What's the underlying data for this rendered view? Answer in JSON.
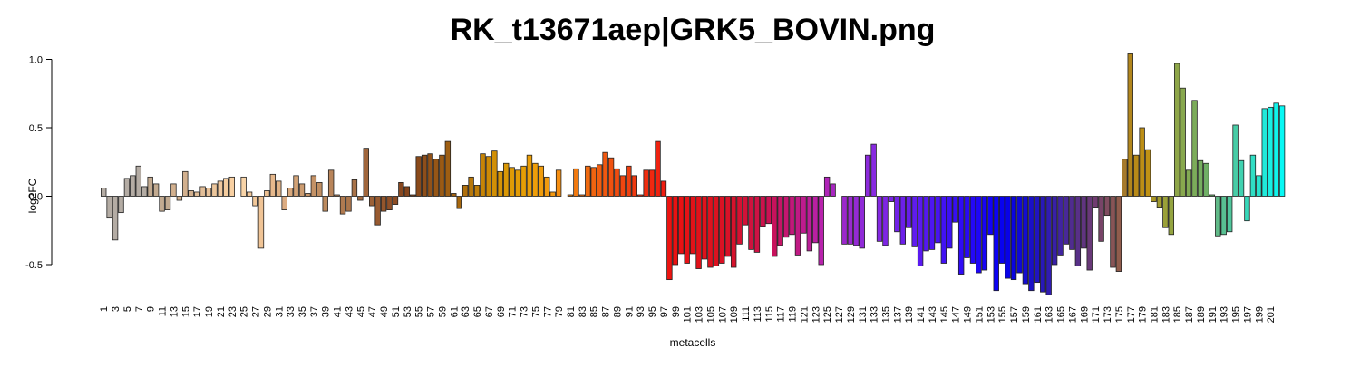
{
  "chart_data": {
    "type": "bar",
    "title": "RK_t13671aep|GRK5_BOVIN.png",
    "xlabel": "metacells",
    "ylabel": "log2FC",
    "ylim": [
      -0.72,
      1.04
    ],
    "yticks": [
      -0.5,
      0.0,
      0.5,
      1.0
    ],
    "ytick_labels": [
      "-0.5",
      "0.0",
      "0.5",
      "1.0"
    ],
    "xtick_labels": [
      "1",
      "3",
      "5",
      "7",
      "9",
      "11",
      "13",
      "15",
      "17",
      "19",
      "21",
      "23",
      "25",
      "27",
      "29",
      "31",
      "33",
      "35",
      "37",
      "39",
      "41",
      "43",
      "45",
      "47",
      "49",
      "51",
      "53",
      "55",
      "57",
      "59",
      "61",
      "63",
      "65",
      "67",
      "69",
      "71",
      "73",
      "75",
      "77",
      "79",
      "81",
      "83",
      "85",
      "87",
      "89",
      "91",
      "93",
      "95",
      "97",
      "99",
      "101",
      "103",
      "105",
      "107",
      "109",
      "111",
      "113",
      "115",
      "117",
      "119",
      "121",
      "123",
      "125",
      "127",
      "129",
      "131",
      "133",
      "135",
      "137",
      "139",
      "141",
      "143",
      "145",
      "147",
      "149",
      "151",
      "153",
      "155",
      "157",
      "159",
      "161",
      "163",
      "165",
      "167",
      "169",
      "171",
      "173",
      "175",
      "177",
      "179",
      "181",
      "183",
      "185",
      "187",
      "189",
      "191",
      "193",
      "195",
      "197",
      "199",
      "201"
    ],
    "xtick_values": [
      1,
      3,
      5,
      7,
      9,
      11,
      13,
      15,
      17,
      19,
      21,
      23,
      25,
      27,
      29,
      31,
      33,
      35,
      37,
      39,
      41,
      43,
      45,
      47,
      49,
      51,
      53,
      55,
      57,
      59,
      61,
      63,
      65,
      67,
      69,
      71,
      73,
      75,
      77,
      79,
      81,
      83,
      85,
      87,
      89,
      91,
      93,
      95,
      97,
      99,
      101,
      103,
      105,
      107,
      109,
      111,
      113,
      115,
      117,
      119,
      121,
      123,
      125,
      127,
      129,
      131,
      133,
      135,
      137,
      139,
      141,
      143,
      145,
      147,
      149,
      151,
      153,
      155,
      157,
      159,
      161,
      163,
      165,
      167,
      169,
      171,
      173,
      175,
      177,
      179,
      181,
      183,
      185,
      187,
      189,
      191,
      193,
      195,
      197,
      199,
      201
    ],
    "grid": false,
    "legend": "none",
    "bars": [
      {
        "x": 1,
        "value": 0.06,
        "color": "#b4aca4"
      },
      {
        "x": 2,
        "value": -0.16,
        "color": "#b4aca4"
      },
      {
        "x": 3,
        "value": -0.32,
        "color": "#b4aca4"
      },
      {
        "x": 4,
        "value": -0.12,
        "color": "#b4aca4"
      },
      {
        "x": 5,
        "value": 0.13,
        "color": "#b4aca4"
      },
      {
        "x": 6,
        "value": 0.15,
        "color": "#b4aca4"
      },
      {
        "x": 7,
        "value": 0.22,
        "color": "#b4aca4"
      },
      {
        "x": 8,
        "value": 0.07,
        "color": "#b4aca4"
      },
      {
        "x": 9,
        "value": 0.14,
        "color": "#c2aa90"
      },
      {
        "x": 10,
        "value": 0.09,
        "color": "#c2aa90"
      },
      {
        "x": 11,
        "value": -0.11,
        "color": "#c2aa90"
      },
      {
        "x": 12,
        "value": -0.1,
        "color": "#c2aa90"
      },
      {
        "x": 13,
        "value": 0.09,
        "color": "#d2b08e"
      },
      {
        "x": 14,
        "value": -0.03,
        "color": "#d2b08e"
      },
      {
        "x": 15,
        "value": 0.18,
        "color": "#d2b08e"
      },
      {
        "x": 16,
        "value": 0.04,
        "color": "#d2b08e"
      },
      {
        "x": 17,
        "value": 0.03,
        "color": "#e2be98"
      },
      {
        "x": 18,
        "value": 0.07,
        "color": "#e2be98"
      },
      {
        "x": 19,
        "value": 0.06,
        "color": "#e8c29a"
      },
      {
        "x": 20,
        "value": 0.09,
        "color": "#ecc69c"
      },
      {
        "x": 21,
        "value": 0.11,
        "color": "#f0c89e"
      },
      {
        "x": 22,
        "value": 0.13,
        "color": "#f4cc9e"
      },
      {
        "x": 23,
        "value": 0.14,
        "color": "#f8d0a2"
      },
      {
        "x": 24,
        "value": 0.0,
        "color": "#f8d0a2"
      },
      {
        "x": 25,
        "value": 0.14,
        "color": "#f8d4a8"
      },
      {
        "x": 26,
        "value": 0.03,
        "color": "#f2c89a"
      },
      {
        "x": 27,
        "value": -0.07,
        "color": "#f2c89a"
      },
      {
        "x": 28,
        "value": -0.38,
        "color": "#f0c496"
      },
      {
        "x": 29,
        "value": 0.04,
        "color": "#ecc092"
      },
      {
        "x": 30,
        "value": 0.16,
        "color": "#e6b88c"
      },
      {
        "x": 31,
        "value": 0.11,
        "color": "#e0b286"
      },
      {
        "x": 32,
        "value": -0.1,
        "color": "#dcac82"
      },
      {
        "x": 33,
        "value": 0.06,
        "color": "#d8a87c"
      },
      {
        "x": 34,
        "value": 0.15,
        "color": "#d2a276"
      },
      {
        "x": 35,
        "value": 0.09,
        "color": "#cc9c70"
      },
      {
        "x": 36,
        "value": 0.02,
        "color": "#c8966a"
      },
      {
        "x": 37,
        "value": 0.15,
        "color": "#c49266"
      },
      {
        "x": 38,
        "value": 0.1,
        "color": "#c08e62"
      },
      {
        "x": 39,
        "value": -0.11,
        "color": "#bc8a5e"
      },
      {
        "x": 40,
        "value": 0.19,
        "color": "#b8845a"
      },
      {
        "x": 41,
        "value": 0.01,
        "color": "#b48056"
      },
      {
        "x": 42,
        "value": -0.13,
        "color": "#b07a50"
      },
      {
        "x": 43,
        "value": -0.11,
        "color": "#ac764c"
      },
      {
        "x": 44,
        "value": 0.12,
        "color": "#a87248"
      },
      {
        "x": 45,
        "value": -0.03,
        "color": "#a46c42"
      },
      {
        "x": 46,
        "value": 0.35,
        "color": "#a0663c"
      },
      {
        "x": 47,
        "value": -0.07,
        "color": "#9c6036"
      },
      {
        "x": 48,
        "value": -0.21,
        "color": "#985a30"
      },
      {
        "x": 49,
        "value": -0.11,
        "color": "#94562c"
      },
      {
        "x": 50,
        "value": -0.1,
        "color": "#905028"
      },
      {
        "x": 51,
        "value": -0.06,
        "color": "#8c4c24"
      },
      {
        "x": 52,
        "value": 0.1,
        "color": "#884820"
      },
      {
        "x": 53,
        "value": 0.07,
        "color": "#84441c"
      },
      {
        "x": 54,
        "value": 0.01,
        "color": "#82461e"
      },
      {
        "x": 55,
        "value": 0.29,
        "color": "#8a4a1a"
      },
      {
        "x": 56,
        "value": 0.3,
        "color": "#8e4e1a"
      },
      {
        "x": 57,
        "value": 0.31,
        "color": "#925218"
      },
      {
        "x": 58,
        "value": 0.27,
        "color": "#965616"
      },
      {
        "x": 59,
        "value": 0.3,
        "color": "#9a5a14"
      },
      {
        "x": 60,
        "value": 0.4,
        "color": "#9e5e12"
      },
      {
        "x": 61,
        "value": 0.02,
        "color": "#a26210"
      },
      {
        "x": 62,
        "value": -0.09,
        "color": "#a8680e"
      },
      {
        "x": 63,
        "value": 0.08,
        "color": "#b0700c"
      },
      {
        "x": 64,
        "value": 0.14,
        "color": "#b8780a"
      },
      {
        "x": 65,
        "value": 0.08,
        "color": "#c07e08"
      },
      {
        "x": 66,
        "value": 0.31,
        "color": "#c68406"
      },
      {
        "x": 67,
        "value": 0.29,
        "color": "#cc8a06"
      },
      {
        "x": 68,
        "value": 0.33,
        "color": "#d29006"
      },
      {
        "x": 69,
        "value": 0.18,
        "color": "#d69406"
      },
      {
        "x": 70,
        "value": 0.24,
        "color": "#da9806"
      },
      {
        "x": 71,
        "value": 0.21,
        "color": "#de9a06"
      },
      {
        "x": 72,
        "value": 0.19,
        "color": "#e29c06"
      },
      {
        "x": 73,
        "value": 0.22,
        "color": "#e69e06"
      },
      {
        "x": 74,
        "value": 0.3,
        "color": "#ea9e08"
      },
      {
        "x": 75,
        "value": 0.24,
        "color": "#ee9e0a"
      },
      {
        "x": 76,
        "value": 0.22,
        "color": "#f09c0c"
      },
      {
        "x": 77,
        "value": 0.14,
        "color": "#f29a0e"
      },
      {
        "x": 78,
        "value": 0.03,
        "color": "#f49810"
      },
      {
        "x": 79,
        "value": 0.19,
        "color": "#f68e10"
      },
      {
        "x": 80,
        "value": 0.0,
        "color": "#f68e10"
      },
      {
        "x": 81,
        "value": 0.01,
        "color": "#f48410"
      },
      {
        "x": 82,
        "value": 0.2,
        "color": "#f27a10"
      },
      {
        "x": 83,
        "value": 0.01,
        "color": "#f07010"
      },
      {
        "x": 84,
        "value": 0.22,
        "color": "#f06a10"
      },
      {
        "x": 85,
        "value": 0.21,
        "color": "#f06410"
      },
      {
        "x": 86,
        "value": 0.23,
        "color": "#f05e10"
      },
      {
        "x": 87,
        "value": 0.32,
        "color": "#f05810"
      },
      {
        "x": 88,
        "value": 0.28,
        "color": "#f05210"
      },
      {
        "x": 89,
        "value": 0.2,
        "color": "#f04c10"
      },
      {
        "x": 90,
        "value": 0.15,
        "color": "#f04610"
      },
      {
        "x": 91,
        "value": 0.22,
        "color": "#f04010"
      },
      {
        "x": 92,
        "value": 0.15,
        "color": "#f03a10"
      },
      {
        "x": 93,
        "value": 0.01,
        "color": "#f03410"
      },
      {
        "x": 94,
        "value": 0.19,
        "color": "#f02e10"
      },
      {
        "x": 95,
        "value": 0.19,
        "color": "#f02810"
      },
      {
        "x": 96,
        "value": 0.4,
        "color": "#f02210"
      },
      {
        "x": 97,
        "value": 0.11,
        "color": "#f01c10"
      },
      {
        "x": 98,
        "value": -0.61,
        "color": "#ec1410"
      },
      {
        "x": 99,
        "value": -0.5,
        "color": "#ea1212"
      },
      {
        "x": 100,
        "value": -0.42,
        "color": "#e81214"
      },
      {
        "x": 101,
        "value": -0.49,
        "color": "#e61216"
      },
      {
        "x": 102,
        "value": -0.42,
        "color": "#e41218"
      },
      {
        "x": 103,
        "value": -0.53,
        "color": "#e2121a"
      },
      {
        "x": 104,
        "value": -0.46,
        "color": "#e0121c"
      },
      {
        "x": 105,
        "value": -0.52,
        "color": "#de121e"
      },
      {
        "x": 106,
        "value": -0.51,
        "color": "#dc1220"
      },
      {
        "x": 107,
        "value": -0.49,
        "color": "#da1224"
      },
      {
        "x": 108,
        "value": -0.44,
        "color": "#d81228"
      },
      {
        "x": 109,
        "value": -0.52,
        "color": "#d6122c"
      },
      {
        "x": 110,
        "value": -0.35,
        "color": "#d41232"
      },
      {
        "x": 111,
        "value": -0.21,
        "color": "#d21238"
      },
      {
        "x": 112,
        "value": -0.39,
        "color": "#d0123e"
      },
      {
        "x": 113,
        "value": -0.41,
        "color": "#ce1244"
      },
      {
        "x": 114,
        "value": -0.22,
        "color": "#cc124c"
      },
      {
        "x": 115,
        "value": -0.2,
        "color": "#ca1254"
      },
      {
        "x": 116,
        "value": -0.44,
        "color": "#c8125c"
      },
      {
        "x": 117,
        "value": -0.36,
        "color": "#c61466"
      },
      {
        "x": 118,
        "value": -0.3,
        "color": "#c41670"
      },
      {
        "x": 119,
        "value": -0.28,
        "color": "#c2187a"
      },
      {
        "x": 120,
        "value": -0.43,
        "color": "#c01a84"
      },
      {
        "x": 121,
        "value": -0.27,
        "color": "#be1c8e"
      },
      {
        "x": 122,
        "value": -0.4,
        "color": "#bc1e98"
      },
      {
        "x": 123,
        "value": -0.34,
        "color": "#ba20a2"
      },
      {
        "x": 124,
        "value": -0.5,
        "color": "#b822ac"
      },
      {
        "x": 125,
        "value": 0.14,
        "color": "#b024b8"
      },
      {
        "x": 126,
        "value": 0.09,
        "color": "#a826c0"
      },
      {
        "x": 127,
        "value": 0.0,
        "color": "#a026c6"
      },
      {
        "x": 128,
        "value": -0.35,
        "color": "#9c28cc"
      },
      {
        "x": 129,
        "value": -0.35,
        "color": "#982ad0"
      },
      {
        "x": 130,
        "value": -0.36,
        "color": "#942ad4"
      },
      {
        "x": 131,
        "value": -0.38,
        "color": "#902ad8"
      },
      {
        "x": 132,
        "value": 0.3,
        "color": "#8c2adc"
      },
      {
        "x": 133,
        "value": 0.38,
        "color": "#882ae0"
      },
      {
        "x": 134,
        "value": -0.33,
        "color": "#8428e2"
      },
      {
        "x": 135,
        "value": -0.36,
        "color": "#7e26e4"
      },
      {
        "x": 136,
        "value": -0.04,
        "color": "#7824e6"
      },
      {
        "x": 137,
        "value": -0.26,
        "color": "#7222e8"
      },
      {
        "x": 138,
        "value": -0.35,
        "color": "#6c20ea"
      },
      {
        "x": 139,
        "value": -0.23,
        "color": "#661eec"
      },
      {
        "x": 140,
        "value": -0.37,
        "color": "#601cee"
      },
      {
        "x": 141,
        "value": -0.51,
        "color": "#5a1af0"
      },
      {
        "x": 142,
        "value": -0.4,
        "color": "#5418f0"
      },
      {
        "x": 143,
        "value": -0.39,
        "color": "#4e16f2"
      },
      {
        "x": 144,
        "value": -0.34,
        "color": "#4814f2"
      },
      {
        "x": 145,
        "value": -0.49,
        "color": "#4212f4"
      },
      {
        "x": 146,
        "value": -0.38,
        "color": "#3c10f4"
      },
      {
        "x": 147,
        "value": -0.19,
        "color": "#360ef4"
      },
      {
        "x": 148,
        "value": -0.57,
        "color": "#300cf6"
      },
      {
        "x": 149,
        "value": -0.45,
        "color": "#2a0af6"
      },
      {
        "x": 150,
        "value": -0.49,
        "color": "#2408f6"
      },
      {
        "x": 151,
        "value": -0.56,
        "color": "#1e06f6"
      },
      {
        "x": 152,
        "value": -0.54,
        "color": "#1804f6"
      },
      {
        "x": 153,
        "value": -0.28,
        "color": "#1202f6"
      },
      {
        "x": 154,
        "value": -0.69,
        "color": "#0c02f4"
      },
      {
        "x": 155,
        "value": -0.49,
        "color": "#0802f0"
      },
      {
        "x": 156,
        "value": -0.6,
        "color": "#0802e8"
      },
      {
        "x": 157,
        "value": -0.61,
        "color": "#0a04e0"
      },
      {
        "x": 158,
        "value": -0.56,
        "color": "#0e08d8"
      },
      {
        "x": 159,
        "value": -0.64,
        "color": "#140cd0"
      },
      {
        "x": 160,
        "value": -0.69,
        "color": "#1a10c8"
      },
      {
        "x": 161,
        "value": -0.63,
        "color": "#2014c0"
      },
      {
        "x": 162,
        "value": -0.7,
        "color": "#2818b8"
      },
      {
        "x": 163,
        "value": -0.72,
        "color": "#301cb0"
      },
      {
        "x": 164,
        "value": -0.5,
        "color": "#3820a8"
      },
      {
        "x": 165,
        "value": -0.43,
        "color": "#4024a0"
      },
      {
        "x": 166,
        "value": -0.35,
        "color": "#482898"
      },
      {
        "x": 167,
        "value": -0.39,
        "color": "#502c90"
      },
      {
        "x": 168,
        "value": -0.51,
        "color": "#583088"
      },
      {
        "x": 169,
        "value": -0.38,
        "color": "#603480"
      },
      {
        "x": 170,
        "value": -0.54,
        "color": "#683878"
      },
      {
        "x": 171,
        "value": -0.08,
        "color": "#703c70"
      },
      {
        "x": 172,
        "value": -0.33,
        "color": "#784468"
      },
      {
        "x": 173,
        "value": -0.14,
        "color": "#804c60"
      },
      {
        "x": 174,
        "value": -0.52,
        "color": "#885456"
      },
      {
        "x": 175,
        "value": -0.55,
        "color": "#905c4c"
      },
      {
        "x": 176,
        "value": 0.27,
        "color": "#a67a2c"
      },
      {
        "x": 177,
        "value": 1.04,
        "color": "#b2861c"
      },
      {
        "x": 178,
        "value": 0.3,
        "color": "#b88a18"
      },
      {
        "x": 179,
        "value": 0.5,
        "color": "#bc8e16"
      },
      {
        "x": 180,
        "value": 0.34,
        "color": "#c09214"
      },
      {
        "x": 181,
        "value": -0.04,
        "color": "#aa9624"
      },
      {
        "x": 182,
        "value": -0.08,
        "color": "#a29c30"
      },
      {
        "x": 183,
        "value": -0.23,
        "color": "#9aa038"
      },
      {
        "x": 184,
        "value": -0.28,
        "color": "#94a440"
      },
      {
        "x": 185,
        "value": 0.97,
        "color": "#8ea648"
      },
      {
        "x": 186,
        "value": 0.79,
        "color": "#88a84e"
      },
      {
        "x": 187,
        "value": 0.19,
        "color": "#82aa54"
      },
      {
        "x": 188,
        "value": 0.7,
        "color": "#7cac5a"
      },
      {
        "x": 189,
        "value": 0.26,
        "color": "#76ae60"
      },
      {
        "x": 190,
        "value": 0.24,
        "color": "#70b066"
      },
      {
        "x": 191,
        "value": 0.01,
        "color": "#6ab26c"
      },
      {
        "x": 192,
        "value": -0.29,
        "color": "#60ba88"
      },
      {
        "x": 193,
        "value": -0.28,
        "color": "#58c092"
      },
      {
        "x": 194,
        "value": -0.26,
        "color": "#50c69c"
      },
      {
        "x": 195,
        "value": 0.52,
        "color": "#48cca6"
      },
      {
        "x": 196,
        "value": 0.26,
        "color": "#40d2b0"
      },
      {
        "x": 197,
        "value": -0.18,
        "color": "#38d8ba"
      },
      {
        "x": 198,
        "value": 0.3,
        "color": "#30dec4"
      },
      {
        "x": 199,
        "value": 0.15,
        "color": "#28e4ce"
      },
      {
        "x": 200,
        "value": 0.64,
        "color": "#20eada"
      },
      {
        "x": 201,
        "value": 0.65,
        "color": "#18f0e4"
      },
      {
        "x": 202,
        "value": 0.68,
        "color": "#10f4ec"
      },
      {
        "x": 203,
        "value": 0.66,
        "color": "#08f8f4"
      }
    ]
  }
}
